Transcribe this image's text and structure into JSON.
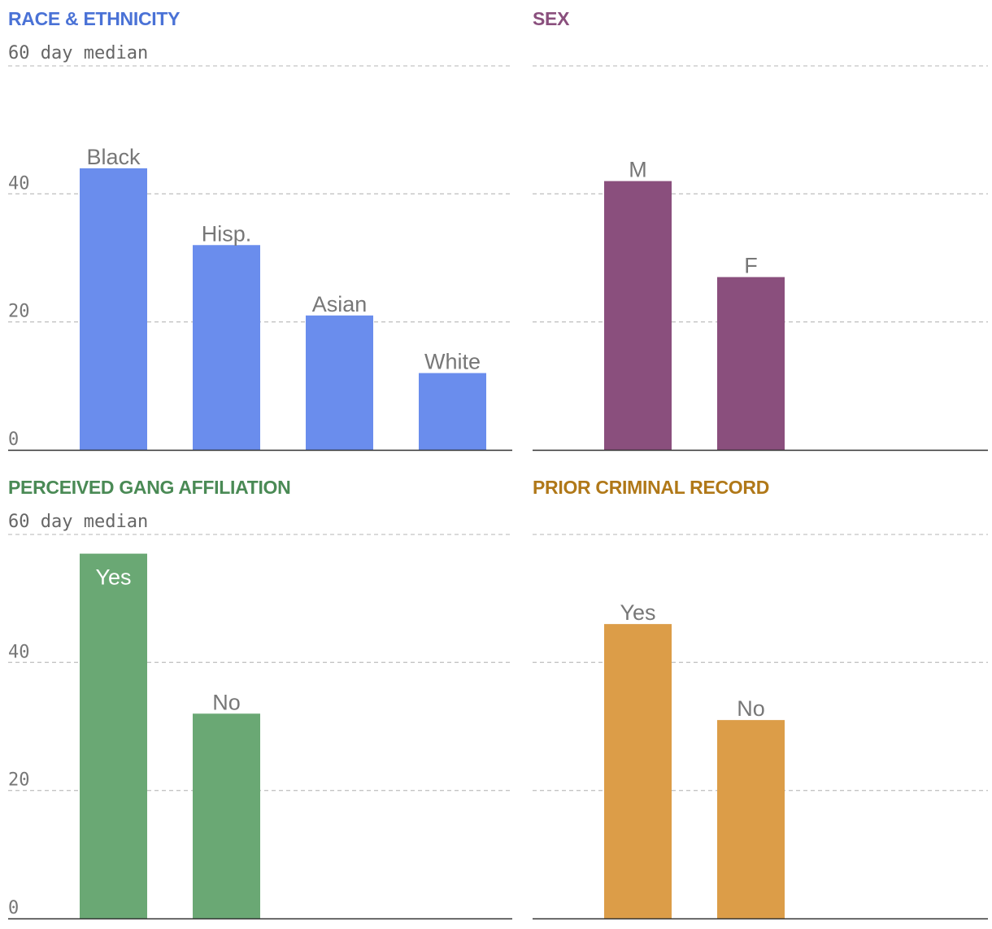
{
  "chart_data": [
    {
      "type": "bar",
      "title": "RACE & ETHNICITY",
      "ylabel": "60 day median",
      "categories": [
        "Black",
        "Hisp.",
        "Asian",
        "White"
      ],
      "values": [
        44,
        32,
        21,
        12
      ],
      "ylim": [
        0,
        60
      ],
      "yticks": [
        0,
        20,
        40
      ],
      "color": "#6a8ded",
      "title_color": "#4a72d6"
    },
    {
      "type": "bar",
      "title": "SEX",
      "ylabel": "",
      "categories": [
        "M",
        "F"
      ],
      "values": [
        42,
        27
      ],
      "ylim": [
        0,
        60
      ],
      "yticks": [
        0,
        20,
        40
      ],
      "color": "#8a4f7d",
      "title_color": "#8a4f7d"
    },
    {
      "type": "bar",
      "title": "PERCEIVED GANG AFFILIATION",
      "ylabel": "60 day median",
      "categories": [
        "Yes",
        "No"
      ],
      "values": [
        57,
        32
      ],
      "ylim": [
        0,
        60
      ],
      "yticks": [
        0,
        20,
        40
      ],
      "color": "#6aa874",
      "title_color": "#4a8a55"
    },
    {
      "type": "bar",
      "title": "PRIOR CRIMINAL RECORD",
      "ylabel": "",
      "categories": [
        "Yes",
        "No"
      ],
      "values": [
        46,
        31
      ],
      "ylim": [
        0,
        60
      ],
      "yticks": [
        0,
        20,
        40
      ],
      "color": "#dc9d48",
      "title_color": "#b07818"
    }
  ]
}
